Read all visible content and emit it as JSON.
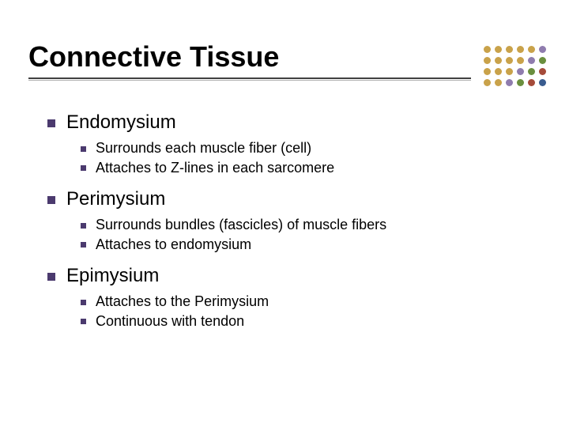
{
  "title": "Connective Tissue",
  "bullets": [
    {
      "label": "Endomysium",
      "sub": [
        "Surrounds each muscle fiber (cell)",
        "Attaches to Z-lines in each sarcomere"
      ]
    },
    {
      "label": "Perimysium",
      "sub": [
        "Surrounds bundles (fascicles) of muscle fibers",
        "Attaches to endomysium"
      ]
    },
    {
      "label": "Epimysium",
      "sub": [
        "Attaches to the Perimysium",
        "Continuous with tendon"
      ]
    }
  ],
  "style": {
    "title_fontsize": 36,
    "title_color": "#000000",
    "underline_color_top": "#404040",
    "underline_color_bottom": "#b0b0b0",
    "l1_fontsize": 24,
    "l2_fontsize": 18,
    "bullet_color": "#4b3a6e",
    "background_color": "#ffffff"
  },
  "decor_dots": {
    "rows": 4,
    "cols": 6,
    "colors": [
      [
        "#c9a24a",
        "#c9a24a",
        "#c9a24a",
        "#c9a24a",
        "#c9a24a",
        "#8f7cae"
      ],
      [
        "#c9a24a",
        "#c9a24a",
        "#c9a24a",
        "#c9a24a",
        "#8f7cae",
        "#6a8f3e"
      ],
      [
        "#c9a24a",
        "#c9a24a",
        "#c9a24a",
        "#8f7cae",
        "#6a8f3e",
        "#a54b3a"
      ],
      [
        "#c9a24a",
        "#c9a24a",
        "#8f7cae",
        "#6a8f3e",
        "#a54b3a",
        "#395c8f"
      ]
    ],
    "radius": 4.5
  }
}
